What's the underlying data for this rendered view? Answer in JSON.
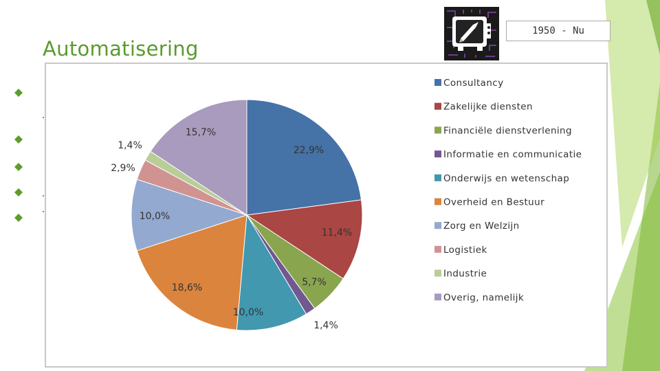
{
  "slide": {
    "title": "Automatisering",
    "period": "1950 - Nu",
    "logo_icon": "retro-tv-rocket-icon",
    "bullet_icon": "diamond-bullet-icon",
    "accent_color": "#5a9a2f",
    "bullet_color": "#5e9c2d"
  },
  "chart_data": {
    "type": "pie",
    "legend_position": "right",
    "categories": [
      "Consultancy",
      "Zakelijke diensten",
      "Financiële dienstverlening",
      "Informatie en communicatie",
      "Onderwijs en wetenschap",
      "Overheid en Bestuur",
      "Zorg en Welzijn",
      "Logistiek",
      "Industrie",
      "Overig, namelijk"
    ],
    "values": [
      22.9,
      11.4,
      5.7,
      1.4,
      10.0,
      18.6,
      10.0,
      2.9,
      1.4,
      15.7
    ],
    "data_labels": [
      "22,9%",
      "11,4%",
      "5,7%",
      "1,4%",
      "10,0%",
      "18,6%",
      "10,0%",
      "2,9%",
      "1,4%",
      "15,7%"
    ],
    "colors": [
      "#4572a7",
      "#aa4643",
      "#89a54e",
      "#71588f",
      "#4198af",
      "#db843d",
      "#93a9cf",
      "#d19392",
      "#b9cd96",
      "#a99bbd"
    ]
  }
}
